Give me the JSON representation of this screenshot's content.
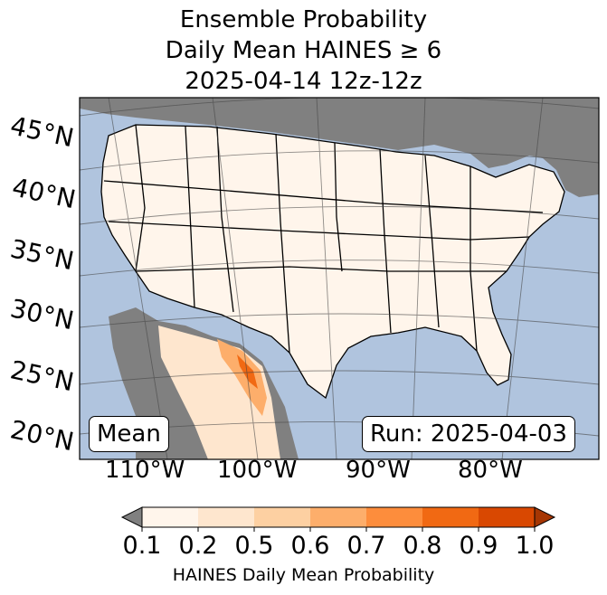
{
  "title": {
    "line1": "Ensemble Probability",
    "line2": "Daily Mean HAINES ≥ 6",
    "line3": "2025-04-14 12z-12z"
  },
  "map": {
    "projection": "Lambert conformal",
    "region": "Continental United States",
    "ocean_color": "#b0c4de",
    "missing_color": "#808080",
    "lat_labels": [
      "45°N",
      "40°N",
      "35°N",
      "30°N",
      "25°N",
      "20°N"
    ],
    "lon_labels": [
      "110°W",
      "100°W",
      "90°W",
      "80°W"
    ],
    "stat_label": "Mean",
    "run_label": "Run: 2025-04-03"
  },
  "colorbar": {
    "ticks": [
      "0.1",
      "0.2",
      "0.5",
      "0.6",
      "0.7",
      "0.8",
      "0.9",
      "1.0"
    ],
    "colors": [
      "#fff5eb",
      "#fee6ce",
      "#fdd0a2",
      "#fdae6b",
      "#fd8d3c",
      "#f16913",
      "#d94801"
    ],
    "under_color": "#808080",
    "over_color": "#a63603",
    "label": "HAINES Daily Mean Probability"
  }
}
